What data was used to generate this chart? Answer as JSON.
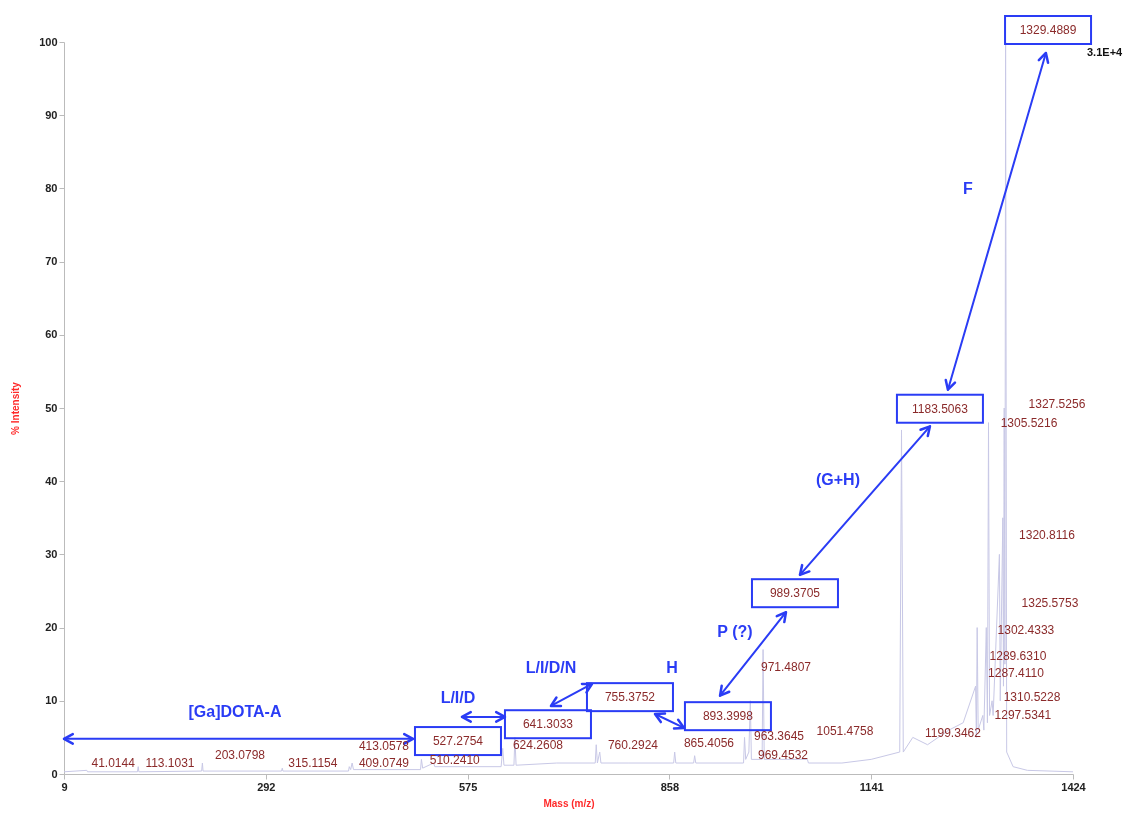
{
  "chart_data": {
    "type": "line",
    "xlabel": "Mass (m/z)",
    "ylabel": "% Intensity",
    "xlim": [
      9,
      1424
    ],
    "ylim": [
      0,
      100
    ],
    "xticks": [
      9,
      292,
      575,
      858,
      {
        "value": 1141,
        "label": "1141"
      },
      {
        "value": 1424,
        "label": "1424"
      }
    ],
    "yticks": [
      0,
      10,
      20,
      30,
      40,
      50,
      60,
      70,
      80,
      90,
      100
    ],
    "x": [
      9,
      41.01,
      42,
      112,
      113.1,
      114,
      202,
      203.08,
      204,
      314,
      315.12,
      316,
      408,
      409.07,
      411,
      413.06,
      415,
      509,
      510.24,
      512,
      527.28,
      529,
      622,
      624.26,
      626,
      640,
      641.3,
      643,
      700,
      754,
      755.38,
      757,
      760.29,
      762,
      800,
      864,
      865.41,
      867,
      892,
      893.4,
      895,
      962,
      963.36,
      965,
      969.45,
      971.48,
      973,
      988,
      989.37,
      991,
      1050,
      1051.48,
      1053,
      1100,
      1141,
      1181,
      1183.51,
      1186,
      1199.35,
      1220,
      1250,
      1270,
      1287.41,
      1288.5,
      1289.63,
      1291,
      1297.53,
      1299,
      1302.43,
      1304,
      1305.52,
      1307,
      1310.52,
      1312,
      1320.81,
      1322,
      1325.58,
      1326.5,
      1327.53,
      1328.5,
      1329.49,
      1331,
      1340,
      1360,
      1424
    ],
    "series": [
      {
        "color": "#c8c8e6",
        "values": [
          0.3,
          0.5,
          0.3,
          0.3,
          1,
          0.3,
          0.4,
          1.5,
          0.4,
          0.4,
          0.8,
          0.4,
          0.4,
          1,
          0.6,
          1.5,
          0.6,
          0.6,
          2,
          0.8,
          1.5,
          1,
          1,
          3.5,
          1.2,
          1.2,
          5,
          1.2,
          1.5,
          1.5,
          4,
          1.5,
          3,
          1.5,
          1.5,
          1.5,
          3,
          1.5,
          1.5,
          2.5,
          1.5,
          1.5,
          5,
          2,
          3,
          10,
          2,
          2,
          17,
          2,
          2,
          2,
          1.5,
          1.5,
          2,
          3,
          47,
          3,
          5,
          4,
          6,
          7,
          12,
          5,
          20,
          6,
          8,
          6,
          20,
          7,
          48,
          8,
          10,
          8,
          30,
          10,
          35,
          12,
          50,
          15,
          100,
          3,
          1,
          0.5,
          0.3
        ]
      }
    ],
    "annotations": [
      "527.2754",
      "641.3033",
      "755.3752",
      "893.3998",
      "989.3705",
      "1183.5063",
      "1329.4889",
      "[Ga]DOTA-A",
      "L/I/D",
      "L/I/D/N",
      "H",
      "P (?)",
      "(G+H)",
      "F",
      "41.0144",
      "113.1031",
      "203.0798",
      "315.1154",
      "409.0749",
      "413.0578",
      "510.2410",
      "624.2608",
      "760.2924",
      "865.4056",
      "963.3645",
      "969.4532",
      "971.4807",
      "1051.4758",
      "1199.3462",
      "1327.5256",
      "1305.5216",
      "1320.8116",
      "1325.5753",
      "1302.4333",
      "1289.6310",
      "1287.4110",
      "1310.5228",
      "1297.5341",
      "3.1E+4"
    ]
  }
}
